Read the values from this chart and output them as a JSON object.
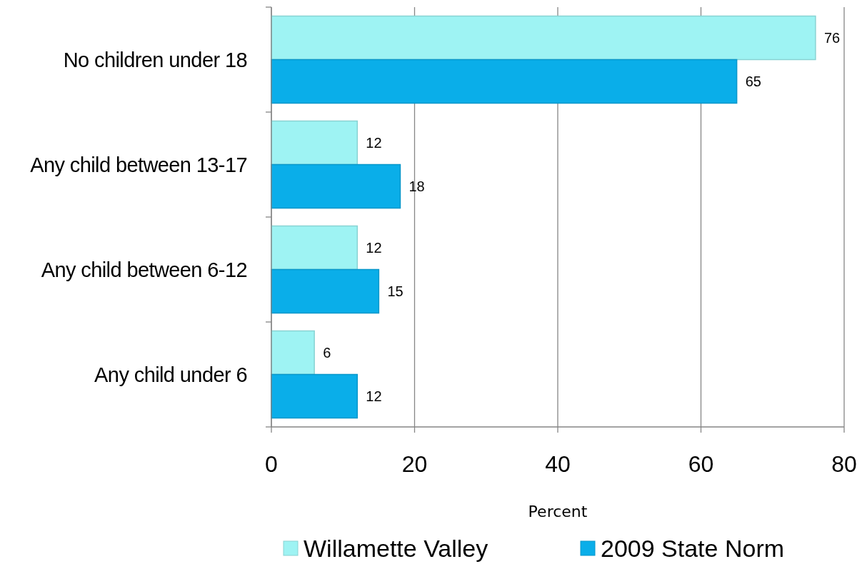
{
  "chart_data": {
    "type": "bar",
    "orientation": "horizontal",
    "categories": [
      "No children under 18",
      "Any child between 13-17",
      "Any child between 6-12",
      "Any child under 6"
    ],
    "series": [
      {
        "name": "Willamette Valley",
        "color": "#9ef3f3",
        "values": [
          76,
          12,
          12,
          6
        ]
      },
      {
        "name": "2009 State Norm",
        "color": "#0aaee9",
        "values": [
          65,
          18,
          15,
          12
        ]
      }
    ],
    "xlim": [
      0,
      80
    ],
    "xticks": [
      0,
      20,
      40,
      60,
      80
    ],
    "xlabel": "Percent",
    "grid": "x",
    "legend": "bottom",
    "data_labels": true
  }
}
